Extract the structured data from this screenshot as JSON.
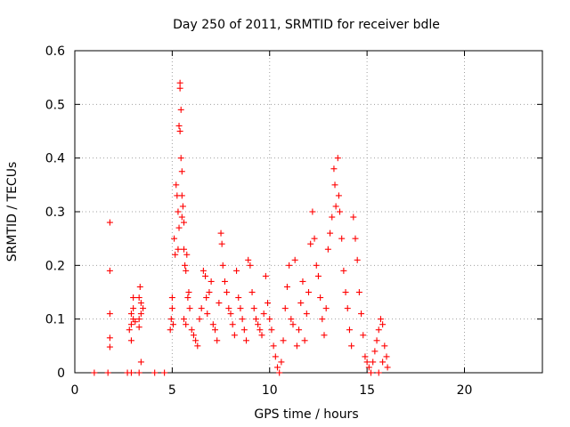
{
  "chart_data": {
    "type": "scatter",
    "title": "Day 250 of 2011, SRMTID for receiver bdle",
    "xlabel": "GPS time / hours",
    "ylabel": "SRMTID / TECUs",
    "xlim": [
      0,
      24
    ],
    "ylim": [
      0,
      0.6
    ],
    "x_ticks": [
      0,
      5,
      10,
      15,
      20
    ],
    "y_ticks": [
      0,
      0.1,
      0.2,
      0.3,
      0.4,
      0.5,
      0.6
    ],
    "x_tick_labels": [
      "0",
      "5",
      "10",
      "15",
      "20"
    ],
    "y_tick_labels": [
      "0",
      "0.1",
      "0.2",
      "0.3",
      "0.4",
      "0.5",
      "0.6"
    ],
    "grid": true,
    "marker": "plus",
    "series": [
      {
        "name": "SRMTID",
        "color": "#ff0000",
        "points": [
          [
            1.0,
            0.0
          ],
          [
            1.7,
            0.0
          ],
          [
            1.8,
            0.28
          ],
          [
            1.8,
            0.19
          ],
          [
            1.8,
            0.11
          ],
          [
            1.8,
            0.065
          ],
          [
            1.8,
            0.048
          ],
          [
            2.7,
            0.0
          ],
          [
            2.9,
            0.0
          ],
          [
            3.3,
            0.0
          ],
          [
            4.1,
            0.0
          ],
          [
            4.6,
            0.0
          ],
          [
            2.8,
            0.08
          ],
          [
            2.9,
            0.09
          ],
          [
            2.9,
            0.11
          ],
          [
            3.0,
            0.12
          ],
          [
            3.0,
            0.14
          ],
          [
            2.9,
            0.06
          ],
          [
            3.0,
            0.1
          ],
          [
            3.1,
            0.095
          ],
          [
            3.3,
            0.14
          ],
          [
            3.35,
            0.16
          ],
          [
            3.4,
            0.13
          ],
          [
            3.3,
            0.1
          ],
          [
            3.4,
            0.11
          ],
          [
            3.5,
            0.12
          ],
          [
            3.4,
            0.02
          ],
          [
            3.3,
            0.085
          ],
          [
            4.9,
            0.08
          ],
          [
            4.95,
            0.1
          ],
          [
            5.0,
            0.12
          ],
          [
            5.0,
            0.14
          ],
          [
            5.05,
            0.09
          ],
          [
            5.1,
            0.25
          ],
          [
            5.15,
            0.22
          ],
          [
            5.2,
            0.35
          ],
          [
            5.25,
            0.33
          ],
          [
            5.3,
            0.3
          ],
          [
            5.35,
            0.27
          ],
          [
            5.3,
            0.23
          ],
          [
            5.4,
            0.54
          ],
          [
            5.4,
            0.53
          ],
          [
            5.45,
            0.49
          ],
          [
            5.35,
            0.46
          ],
          [
            5.4,
            0.45
          ],
          [
            5.45,
            0.4
          ],
          [
            5.5,
            0.375
          ],
          [
            5.5,
            0.33
          ],
          [
            5.55,
            0.31
          ],
          [
            5.5,
            0.29
          ],
          [
            5.6,
            0.28
          ],
          [
            5.6,
            0.23
          ],
          [
            5.65,
            0.2
          ],
          [
            5.7,
            0.19
          ],
          [
            5.75,
            0.22
          ],
          [
            5.8,
            0.14
          ],
          [
            5.85,
            0.15
          ],
          [
            5.9,
            0.12
          ],
          [
            5.6,
            0.1
          ],
          [
            5.7,
            0.09
          ],
          [
            6.0,
            0.08
          ],
          [
            6.1,
            0.07
          ],
          [
            6.2,
            0.06
          ],
          [
            6.3,
            0.05
          ],
          [
            6.4,
            0.1
          ],
          [
            6.5,
            0.12
          ],
          [
            6.6,
            0.19
          ],
          [
            6.7,
            0.18
          ],
          [
            6.75,
            0.14
          ],
          [
            6.8,
            0.11
          ],
          [
            6.9,
            0.15
          ],
          [
            7.0,
            0.17
          ],
          [
            7.1,
            0.09
          ],
          [
            7.2,
            0.08
          ],
          [
            7.3,
            0.06
          ],
          [
            7.4,
            0.13
          ],
          [
            7.5,
            0.26
          ],
          [
            7.55,
            0.24
          ],
          [
            7.6,
            0.2
          ],
          [
            7.7,
            0.17
          ],
          [
            7.8,
            0.15
          ],
          [
            7.9,
            0.12
          ],
          [
            8.0,
            0.11
          ],
          [
            8.1,
            0.09
          ],
          [
            8.2,
            0.07
          ],
          [
            8.3,
            0.19
          ],
          [
            8.4,
            0.14
          ],
          [
            8.5,
            0.12
          ],
          [
            8.6,
            0.1
          ],
          [
            8.7,
            0.08
          ],
          [
            8.8,
            0.06
          ],
          [
            8.9,
            0.21
          ],
          [
            9.0,
            0.2
          ],
          [
            9.1,
            0.15
          ],
          [
            9.2,
            0.12
          ],
          [
            9.3,
            0.1
          ],
          [
            9.4,
            0.09
          ],
          [
            9.5,
            0.08
          ],
          [
            9.6,
            0.07
          ],
          [
            9.7,
            0.11
          ],
          [
            9.8,
            0.18
          ],
          [
            9.9,
            0.13
          ],
          [
            10.0,
            0.1
          ],
          [
            10.1,
            0.08
          ],
          [
            10.2,
            0.05
          ],
          [
            10.3,
            0.03
          ],
          [
            10.4,
            0.01
          ],
          [
            10.5,
            0.0
          ],
          [
            10.6,
            0.02
          ],
          [
            10.7,
            0.06
          ],
          [
            10.8,
            0.12
          ],
          [
            10.9,
            0.16
          ],
          [
            11.0,
            0.2
          ],
          [
            11.1,
            0.1
          ],
          [
            11.2,
            0.09
          ],
          [
            11.3,
            0.21
          ],
          [
            11.4,
            0.05
          ],
          [
            11.5,
            0.08
          ],
          [
            11.6,
            0.13
          ],
          [
            11.7,
            0.17
          ],
          [
            11.8,
            0.06
          ],
          [
            11.9,
            0.11
          ],
          [
            12.0,
            0.15
          ],
          [
            12.1,
            0.24
          ],
          [
            12.2,
            0.3
          ],
          [
            12.3,
            0.25
          ],
          [
            12.4,
            0.2
          ],
          [
            12.5,
            0.18
          ],
          [
            12.6,
            0.14
          ],
          [
            12.7,
            0.1
          ],
          [
            12.8,
            0.07
          ],
          [
            12.9,
            0.12
          ],
          [
            13.0,
            0.23
          ],
          [
            13.1,
            0.26
          ],
          [
            13.2,
            0.29
          ],
          [
            13.3,
            0.38
          ],
          [
            13.35,
            0.35
          ],
          [
            13.4,
            0.31
          ],
          [
            13.5,
            0.4
          ],
          [
            13.55,
            0.33
          ],
          [
            13.6,
            0.3
          ],
          [
            13.7,
            0.25
          ],
          [
            13.8,
            0.19
          ],
          [
            13.9,
            0.15
          ],
          [
            14.0,
            0.12
          ],
          [
            14.1,
            0.08
          ],
          [
            14.2,
            0.05
          ],
          [
            14.3,
            0.29
          ],
          [
            14.4,
            0.25
          ],
          [
            14.5,
            0.21
          ],
          [
            14.6,
            0.15
          ],
          [
            14.7,
            0.11
          ],
          [
            14.8,
            0.07
          ],
          [
            14.9,
            0.03
          ],
          [
            15.0,
            0.02
          ],
          [
            15.1,
            0.01
          ],
          [
            15.2,
            0.0
          ],
          [
            15.3,
            0.02
          ],
          [
            15.4,
            0.04
          ],
          [
            15.5,
            0.06
          ],
          [
            15.6,
            0.08
          ],
          [
            15.7,
            0.1
          ],
          [
            15.8,
            0.09
          ],
          [
            15.9,
            0.05
          ],
          [
            16.0,
            0.03
          ],
          [
            16.05,
            0.01
          ],
          [
            15.6,
            0.0
          ],
          [
            15.8,
            0.02
          ]
        ]
      }
    ]
  }
}
